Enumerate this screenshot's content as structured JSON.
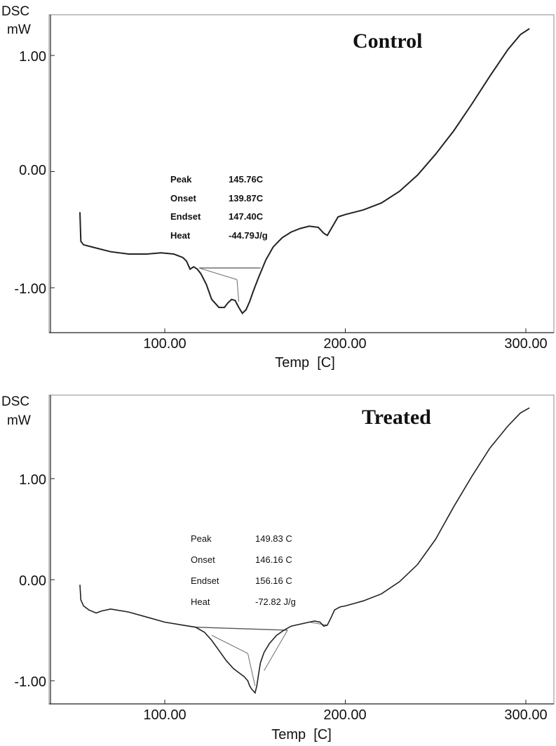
{
  "chart_data": [
    {
      "type": "line",
      "title": "Control",
      "ylabel_line1": "DSC",
      "ylabel_line2": "mW",
      "xlabel": "Temp  [C]",
      "xlim": [
        40,
        310
      ],
      "ylim": [
        -1.4,
        1.4
      ],
      "xticks": [
        100,
        200,
        300
      ],
      "xtick_labels": [
        "100.00",
        "200.00",
        "300.00"
      ],
      "yticks": [
        1.0,
        0.0,
        -1.0
      ],
      "ytick_labels": [
        "1.00",
        "0.00",
        "-1.00"
      ],
      "annotation": [
        {
          "label": "Peak",
          "value": "145.76C"
        },
        {
          "label": "Onset",
          "value": "139.87C"
        },
        {
          "label": "Endset",
          "value": "147.40C"
        },
        {
          "label": "Heat",
          "value": "-44.79J/g"
        }
      ],
      "baseline": {
        "x": [
          119,
          153
        ],
        "y": [
          -0.83,
          -0.83
        ]
      },
      "tangents": [
        {
          "x": [
            119,
            140
          ],
          "y": [
            -0.83,
            -0.93
          ]
        },
        {
          "x": [
            140,
            141
          ],
          "y": [
            -0.93,
            -1.12
          ]
        }
      ],
      "series": [
        {
          "x": [
            53,
            53.5,
            55,
            60,
            70,
            80,
            90,
            98,
            105,
            110,
            112,
            114,
            116,
            118,
            120,
            123,
            126,
            130,
            133,
            135,
            137,
            139,
            141,
            143,
            145,
            147,
            149,
            152,
            156,
            160,
            165,
            170,
            175,
            180,
            185,
            188,
            190,
            193,
            196,
            200,
            210,
            220,
            230,
            240,
            250,
            260,
            270,
            280,
            290,
            297,
            302
          ],
          "y": [
            -0.35,
            -0.6,
            -0.63,
            -0.65,
            -0.69,
            -0.71,
            -0.71,
            -0.7,
            -0.71,
            -0.74,
            -0.77,
            -0.84,
            -0.82,
            -0.84,
            -0.88,
            -0.97,
            -1.1,
            -1.17,
            -1.17,
            -1.13,
            -1.1,
            -1.11,
            -1.17,
            -1.22,
            -1.19,
            -1.12,
            -1.03,
            -0.91,
            -0.76,
            -0.65,
            -0.57,
            -0.52,
            -0.49,
            -0.47,
            -0.48,
            -0.53,
            -0.55,
            -0.47,
            -0.39,
            -0.37,
            -0.33,
            -0.27,
            -0.17,
            -0.03,
            0.15,
            0.35,
            0.58,
            0.82,
            1.05,
            1.18,
            1.23
          ]
        }
      ]
    },
    {
      "type": "line",
      "title": "Treated",
      "ylabel_line1": "DSC",
      "ylabel_line2": "mW",
      "xlabel": "Temp  [C]",
      "xlim": [
        40,
        310
      ],
      "ylim": [
        -1.25,
        1.65
      ],
      "xticks": [
        100,
        200,
        300
      ],
      "xtick_labels": [
        "100.00",
        "200.00",
        "300.00"
      ],
      "yticks": [
        1.0,
        0.0,
        -1.0
      ],
      "ytick_labels": [
        "1.00",
        "0.00",
        "-1.00"
      ],
      "annotation": [
        {
          "label": "Peak",
          "value": "149.83 C"
        },
        {
          "label": "Onset",
          "value": "146.16 C"
        },
        {
          "label": "Endset",
          "value": "156.16 C"
        },
        {
          "label": "Heat",
          "value": "-72.82 J/g"
        }
      ],
      "baseline": {
        "x": [
          117,
          168
        ],
        "y": [
          -0.47,
          -0.5
        ]
      },
      "tangents": [
        {
          "x": [
            126,
            146
          ],
          "y": [
            -0.55,
            -0.73
          ]
        },
        {
          "x": [
            146,
            150
          ],
          "y": [
            -0.73,
            -1.05
          ]
        },
        {
          "x": [
            155,
            168
          ],
          "y": [
            -0.9,
            -0.5
          ]
        },
        {
          "x": [
            180,
            190
          ],
          "y": [
            -0.42,
            -0.45
          ]
        }
      ],
      "series": [
        {
          "x": [
            53,
            53.5,
            55,
            58,
            62,
            65,
            70,
            80,
            90,
            100,
            110,
            117,
            122,
            126,
            130,
            134,
            138,
            141,
            144,
            146,
            147,
            148,
            149,
            150,
            151,
            152,
            153,
            155,
            158,
            162,
            166,
            170,
            175,
            180,
            183,
            186,
            188,
            190,
            192,
            194,
            197,
            200,
            210,
            220,
            230,
            240,
            250,
            260,
            270,
            280,
            290,
            297,
            302
          ],
          "y": [
            -0.05,
            -0.2,
            -0.26,
            -0.3,
            -0.33,
            -0.31,
            -0.29,
            -0.32,
            -0.37,
            -0.42,
            -0.45,
            -0.47,
            -0.52,
            -0.6,
            -0.7,
            -0.8,
            -0.88,
            -0.92,
            -0.96,
            -1.0,
            -1.05,
            -1.08,
            -1.1,
            -1.12,
            -1.05,
            -0.93,
            -0.82,
            -0.72,
            -0.63,
            -0.55,
            -0.5,
            -0.46,
            -0.44,
            -0.42,
            -0.41,
            -0.42,
            -0.46,
            -0.45,
            -0.38,
            -0.3,
            -0.27,
            -0.26,
            -0.21,
            -0.14,
            -0.02,
            0.15,
            0.4,
            0.72,
            1.02,
            1.3,
            1.52,
            1.65,
            1.7
          ]
        }
      ]
    }
  ]
}
